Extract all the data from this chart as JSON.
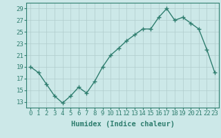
{
  "x": [
    0,
    1,
    2,
    3,
    4,
    5,
    6,
    7,
    8,
    9,
    10,
    11,
    12,
    13,
    14,
    15,
    16,
    17,
    18,
    19,
    20,
    21,
    22,
    23
  ],
  "y": [
    19,
    18,
    16,
    14,
    12.8,
    14,
    15.5,
    14.5,
    16.5,
    19,
    21,
    22.2,
    23.5,
    24.5,
    25.5,
    25.5,
    27.5,
    29,
    27,
    27.5,
    26.5,
    25.5,
    22,
    18
  ],
  "line_color": "#2e7d6e",
  "marker": "+",
  "marker_size": 4,
  "line_width": 1.0,
  "bg_color": "#cce8e8",
  "grid_color": "#b0cccc",
  "xlabel": "Humidex (Indice chaleur)",
  "xlim": [
    -0.5,
    23.5
  ],
  "ylim": [
    12,
    30
  ],
  "yticks": [
    13,
    15,
    17,
    19,
    21,
    23,
    25,
    27,
    29
  ],
  "xticks": [
    0,
    1,
    2,
    3,
    4,
    5,
    6,
    7,
    8,
    9,
    10,
    11,
    12,
    13,
    14,
    15,
    16,
    17,
    18,
    19,
    20,
    21,
    22,
    23
  ],
  "xlabel_fontsize": 7.5,
  "tick_fontsize": 6.5,
  "xlabel_color": "#2e7d6e",
  "spine_color": "#2e7d6e",
  "markeredgewidth": 1.0
}
